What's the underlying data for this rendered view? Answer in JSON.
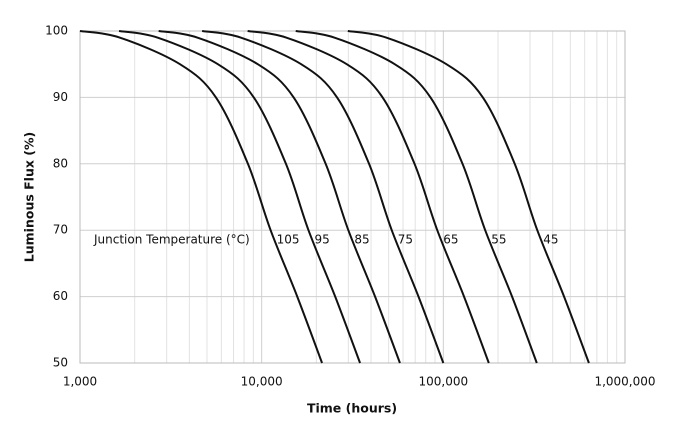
{
  "chart_data": {
    "type": "line",
    "xlabel": "Time (hours)",
    "ylabel": "Luminous Flux (%)",
    "annotation": "Junction Temperature (°C)",
    "xscale": "log",
    "grid": true,
    "color": "#111111",
    "xlim": [
      1000,
      1000000
    ],
    "ylim": [
      50,
      100
    ],
    "xticks": [
      {
        "value": 1000,
        "label": "1,000"
      },
      {
        "value": 10000,
        "label": "10,000"
      },
      {
        "value": 100000,
        "label": "100,000"
      },
      {
        "value": 1000000,
        "label": "1,000,000"
      }
    ],
    "yticks": [
      50,
      60,
      70,
      80,
      90,
      100
    ],
    "series": [
      {
        "name": "105",
        "x": [
          1000,
          1660,
          3550,
          5600,
          8400,
          11200,
          15700,
          21500
        ],
        "values": [
          100,
          99,
          95,
          90,
          80,
          70,
          60,
          50
        ]
      },
      {
        "name": "95",
        "x": [
          1640,
          2680,
          5740,
          9050,
          13600,
          18100,
          25400,
          34800
        ],
        "values": [
          100,
          99,
          95,
          90,
          80,
          70,
          60,
          50
        ]
      },
      {
        "name": "85",
        "x": [
          2710,
          4440,
          9520,
          15000,
          22500,
          30000,
          42100,
          57700
        ],
        "values": [
          100,
          99,
          95,
          90,
          80,
          70,
          60,
          50
        ]
      },
      {
        "name": "75",
        "x": [
          4700,
          7700,
          16500,
          26000,
          39000,
          52000,
          73000,
          100000
        ],
        "values": [
          100,
          99,
          95,
          90,
          80,
          70,
          60,
          50
        ]
      },
      {
        "name": "65",
        "x": [
          8370,
          13700,
          29400,
          46300,
          69400,
          92600,
          130000,
          178000
        ],
        "values": [
          100,
          99,
          95,
          90,
          80,
          70,
          60,
          50
        ]
      },
      {
        "name": "55",
        "x": [
          15400,
          25200,
          54000,
          85000,
          127500,
          170000,
          239000,
          327000
        ],
        "values": [
          100,
          99,
          95,
          90,
          80,
          70,
          60,
          50
        ]
      },
      {
        "name": "45",
        "x": [
          29800,
          48700,
          104000,
          165000,
          247000,
          329000,
          462000,
          633000
        ],
        "values": [
          100,
          99,
          95,
          90,
          80,
          70,
          60,
          50
        ]
      }
    ]
  }
}
